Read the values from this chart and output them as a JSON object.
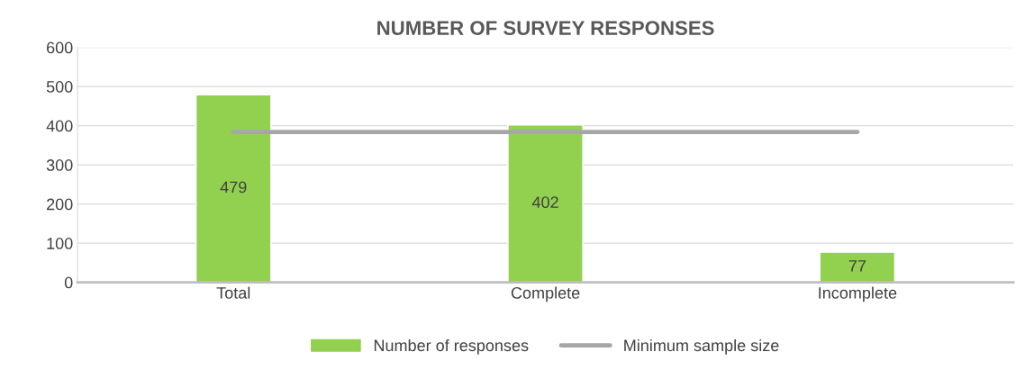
{
  "chart_data": {
    "type": "bar",
    "title": "NUMBER OF SURVEY RESPONSES",
    "categories": [
      "Total",
      "Complete",
      "Incomplete"
    ],
    "series": [
      {
        "name": "Number of responses",
        "color": "#92d050",
        "values": [
          479,
          402,
          77
        ],
        "value_labels": [
          "479",
          "402",
          "77"
        ]
      },
      {
        "name": "Minimum sample size",
        "type": "line",
        "color": "#a6a6a6",
        "values": [
          384,
          384,
          384
        ]
      }
    ],
    "ylim": [
      0,
      600
    ],
    "yticks": [
      0,
      100,
      200,
      300,
      400,
      500,
      600
    ],
    "grid": "y",
    "legend": "bottom",
    "marker": "none",
    "line_style": "solid"
  }
}
